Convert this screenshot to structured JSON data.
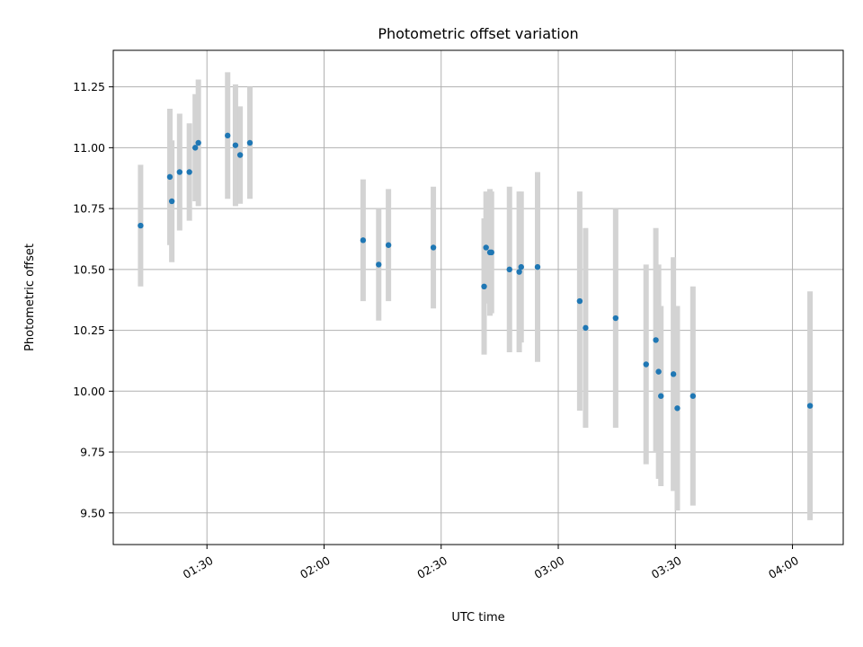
{
  "chart_data": {
    "type": "scatter",
    "title": "Photometric offset variation",
    "xlabel": "UTC time",
    "ylabel": "Photometric offset",
    "xlim": [
      "01:06",
      "04:13"
    ],
    "ylim": [
      9.37,
      11.4
    ],
    "grid": true,
    "x_ticks": [
      "01:30",
      "02:00",
      "02:30",
      "03:00",
      "03:30",
      "04:00"
    ],
    "y_ticks": [
      "9.50",
      "9.75",
      "10.00",
      "10.25",
      "10.50",
      "10.75",
      "11.00",
      "11.25"
    ],
    "colors": {
      "point": "#1f77b4",
      "errorbar": "#d3d3d3"
    },
    "series": [
      {
        "points": [
          {
            "x": "01:13",
            "y": 10.68,
            "err": 0.25
          },
          {
            "x": "01:20.5",
            "y": 10.88,
            "err": 0.28
          },
          {
            "x": "01:21",
            "y": 10.78,
            "err": 0.25
          },
          {
            "x": "01:23",
            "y": 10.9,
            "err": 0.24
          },
          {
            "x": "01:25.5",
            "y": 10.9,
            "err": 0.2
          },
          {
            "x": "01:27",
            "y": 11.0,
            "err": 0.22
          },
          {
            "x": "01:27.8",
            "y": 11.02,
            "err": 0.26
          },
          {
            "x": "01:35.3",
            "y": 11.05,
            "err": 0.26
          },
          {
            "x": "01:37.3",
            "y": 11.01,
            "err": 0.25
          },
          {
            "x": "01:38.5",
            "y": 10.97,
            "err": 0.2
          },
          {
            "x": "01:41",
            "y": 11.02,
            "err": 0.23
          },
          {
            "x": "02:10",
            "y": 10.62,
            "err": 0.25
          },
          {
            "x": "02:14",
            "y": 10.52,
            "err": 0.23
          },
          {
            "x": "02:16.5",
            "y": 10.6,
            "err": 0.23
          },
          {
            "x": "02:28",
            "y": 10.59,
            "err": 0.25
          },
          {
            "x": "02:41",
            "y": 10.43,
            "err": 0.28
          },
          {
            "x": "02:41.5",
            "y": 10.59,
            "err": 0.23
          },
          {
            "x": "02:42.5",
            "y": 10.57,
            "err": 0.26
          },
          {
            "x": "02:42.9",
            "y": 10.57,
            "err": 0.25
          },
          {
            "x": "02:47.5",
            "y": 10.5,
            "err": 0.34
          },
          {
            "x": "02:50",
            "y": 10.49,
            "err": 0.33
          },
          {
            "x": "02:50.5",
            "y": 10.51,
            "err": 0.31
          },
          {
            "x": "02:54.7",
            "y": 10.51,
            "err": 0.39
          },
          {
            "x": "03:05.5",
            "y": 10.37,
            "err": 0.45
          },
          {
            "x": "03:07",
            "y": 10.26,
            "err": 0.41
          },
          {
            "x": "03:14.7",
            "y": 10.3,
            "err": 0.45
          },
          {
            "x": "03:22.5",
            "y": 10.11,
            "err": 0.41
          },
          {
            "x": "03:25",
            "y": 10.21,
            "err": 0.46
          },
          {
            "x": "03:25.7",
            "y": 10.08,
            "err": 0.44
          },
          {
            "x": "03:26.3",
            "y": 9.98,
            "err": 0.37
          },
          {
            "x": "03:29.5",
            "y": 10.07,
            "err": 0.48
          },
          {
            "x": "03:30.5",
            "y": 9.93,
            "err": 0.42
          },
          {
            "x": "03:34.5",
            "y": 9.98,
            "err": 0.45
          },
          {
            "x": "04:04.5",
            "y": 9.94,
            "err": 0.47
          }
        ]
      }
    ]
  }
}
